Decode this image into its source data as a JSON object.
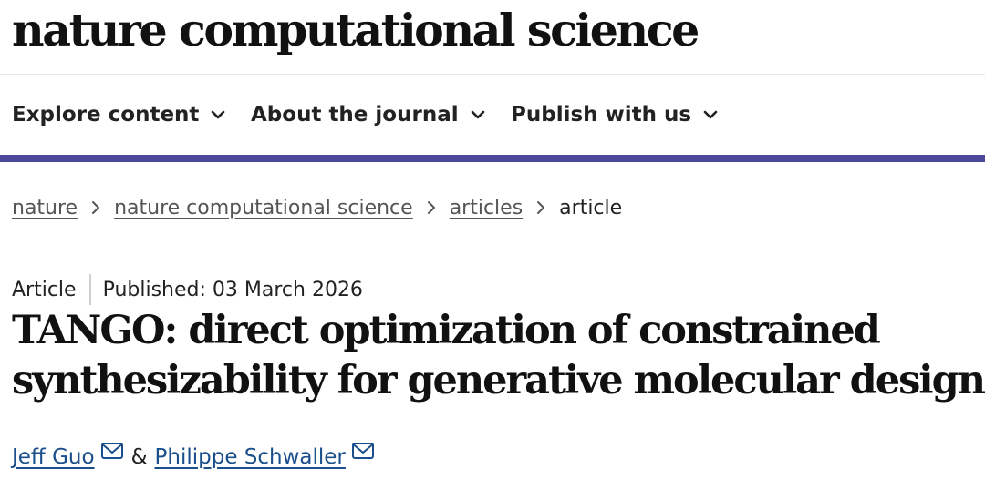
{
  "masthead": {
    "logo_text": "nature computational science"
  },
  "nav": {
    "items": [
      {
        "label": "Explore content",
        "icon": "chevron-down-icon"
      },
      {
        "label": "About the journal",
        "icon": "chevron-down-icon"
      },
      {
        "label": "Publish with us",
        "icon": "chevron-down-icon"
      }
    ]
  },
  "colors": {
    "accent_rule": "#4b489a",
    "link": "#1a4f8c",
    "breadcrumb_link": "#555555"
  },
  "breadcrumb": {
    "items": [
      "nature",
      "nature computational science",
      "articles"
    ],
    "current": "article"
  },
  "article": {
    "type": "Article",
    "published": "Published: 03 March 2026",
    "title_line1": "TANGO: direct optimization of constrained",
    "title_line2": "synthesizability for generative molecular design",
    "authors": [
      {
        "name": "Jeff Guo",
        "icon": "mail-icon"
      },
      {
        "name": "Philippe Schwaller",
        "icon": "mail-icon"
      }
    ],
    "author_separator": "&"
  }
}
